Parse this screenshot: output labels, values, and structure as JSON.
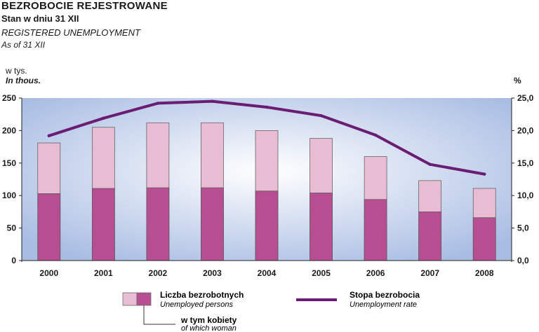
{
  "header": {
    "title_pl": "BEZROBOCIE REJESTROWANE",
    "subtitle_pl": "Stan w dniu 31 XII",
    "title_en": "REGISTERED UNEMPLOYMENT",
    "subtitle_en": "As of 31 XII"
  },
  "axes": {
    "left_unit_pl": "w tys.",
    "left_unit_en": "In thous.",
    "right_unit": "%"
  },
  "legend": {
    "bars_pl": "Liczba bezrobotnych",
    "bars_en": "Unemployed persons",
    "women_pl": "w tym kobiety",
    "women_en": "of which woman",
    "line_pl": "Stopa bezrobocia",
    "line_en": "Unemployment rate"
  },
  "colors": {
    "total": "#e8bdd3",
    "women": "#b84e92",
    "line": "#6b1d74",
    "plot_bg_center": "#ffffff",
    "plot_bg_edge": "#a9bde3"
  },
  "chart_data": {
    "type": "bar",
    "categories": [
      "2000",
      "2001",
      "2002",
      "2003",
      "2004",
      "2005",
      "2006",
      "2007",
      "2008"
    ],
    "series": [
      {
        "name": "Liczba bezrobotnych / Unemployed persons",
        "type": "bar",
        "axis": "left",
        "values": [
          181,
          205,
          212,
          212,
          200,
          188,
          160,
          123,
          111
        ]
      },
      {
        "name": "w tym kobiety / of which woman",
        "type": "bar",
        "axis": "left",
        "values": [
          103,
          111,
          112,
          112,
          107,
          104,
          94,
          75,
          66
        ]
      },
      {
        "name": "Stopa bezrobocia / Unemployment rate",
        "type": "line",
        "axis": "right",
        "values": [
          19.2,
          21.9,
          24.2,
          24.5,
          23.6,
          22.3,
          19.3,
          14.8,
          13.3
        ]
      }
    ],
    "ylim": [
      0,
      250
    ],
    "yticks": [
      "0",
      "50",
      "100",
      "150",
      "200",
      "250"
    ],
    "y2lim": [
      0,
      25
    ],
    "y2ticks": [
      "0,0",
      "5,0",
      "10,0",
      "15,0",
      "20,0",
      "25,0"
    ],
    "grid": false,
    "legend_position": "bottom"
  }
}
